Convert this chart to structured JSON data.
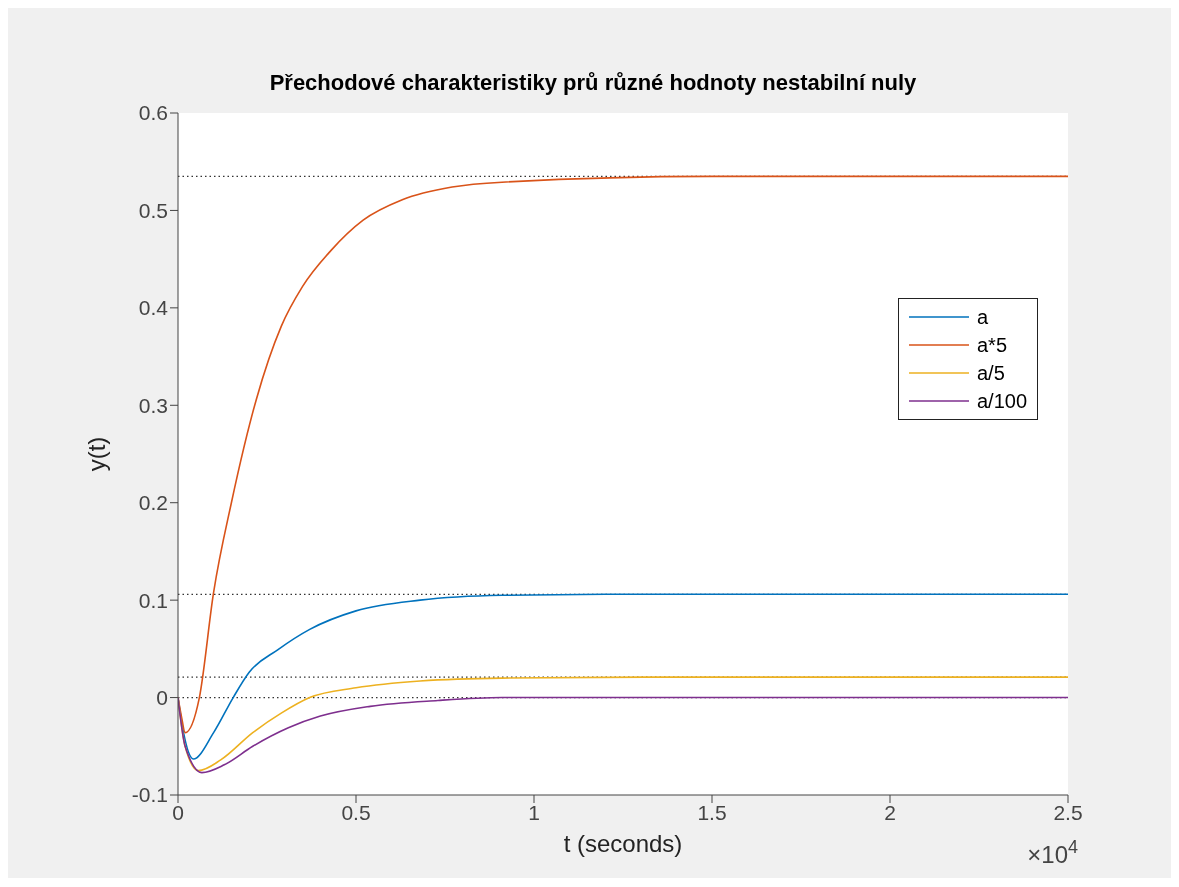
{
  "chart_data": {
    "type": "line",
    "title": "Přechodové charakteristiky prů různé hodnoty nestabilní nuly",
    "xlabel": "t (seconds)",
    "ylabel": "y(t)",
    "annotations": [
      "×10$^{4}$"
    ],
    "xlim": [
      0,
      2.5
    ],
    "xticks": [
      0,
      0.5,
      1,
      1.5,
      2,
      2.5
    ],
    "ylim": [
      -0.1,
      0.6
    ],
    "yticks": [
      -0.1,
      0,
      0.1,
      0.2,
      0.3,
      0.4,
      0.5,
      0.6
    ],
    "legend": "right",
    "grid": false,
    "ref_lines": [
      {
        "axis": "y",
        "value": 0.535,
        "color": "#333333",
        "line_style": "dotted"
      },
      {
        "axis": "y",
        "value": 0.106,
        "color": "#333333",
        "line_style": "dotted"
      },
      {
        "axis": "y",
        "value": 0.021,
        "color": "#333333",
        "line_style": "dotted"
      },
      {
        "axis": "y",
        "value": 0,
        "color": "#333333",
        "line_style": "dotted"
      }
    ],
    "series": [
      {
        "name": "a",
        "color": "#0072bd",
        "x": [
          0,
          0.015,
          0.043,
          0.1,
          0.155,
          0.2,
          0.28,
          0.37,
          0.5,
          0.68,
          0.91,
          1.2,
          2.5
        ],
        "values": [
          0,
          -0.035,
          -0.063,
          -0.036,
          0,
          0.026,
          0.049,
          0.07,
          0.089,
          0.1,
          0.105,
          0.106,
          0.106
        ]
      },
      {
        "name": "a*5",
        "color": "#d95319",
        "x": [
          0,
          0.01,
          0.02,
          0.06,
          0.1,
          0.15,
          0.22,
          0.29,
          0.35,
          0.43,
          0.52,
          0.63,
          0.77,
          0.91,
          1.5,
          2.5
        ],
        "values": [
          0,
          -0.02,
          -0.036,
          0,
          0.108,
          0.2,
          0.306,
          0.381,
          0.422,
          0.459,
          0.49,
          0.511,
          0.524,
          0.529,
          0.535,
          0.535
        ]
      },
      {
        "name": "a/5",
        "color": "#edb120",
        "x": [
          0,
          0.02,
          0.057,
          0.12,
          0.21,
          0.29,
          0.37,
          0.5,
          0.68,
          0.91,
          1.4,
          2.5
        ],
        "values": [
          0,
          -0.05,
          -0.075,
          -0.064,
          -0.036,
          -0.016,
          0,
          0.01,
          0.017,
          0.02,
          0.021,
          0.021
        ]
      },
      {
        "name": "a/100",
        "color": "#7e2f8e",
        "x": [
          0,
          0.02,
          0.067,
          0.13,
          0.21,
          0.31,
          0.4,
          0.54,
          0.73,
          0.91,
          1.4,
          2.5
        ],
        "values": [
          0,
          -0.05,
          -0.077,
          -0.069,
          -0.05,
          -0.031,
          -0.019,
          -0.009,
          -0.003,
          0,
          0,
          0
        ]
      }
    ]
  }
}
